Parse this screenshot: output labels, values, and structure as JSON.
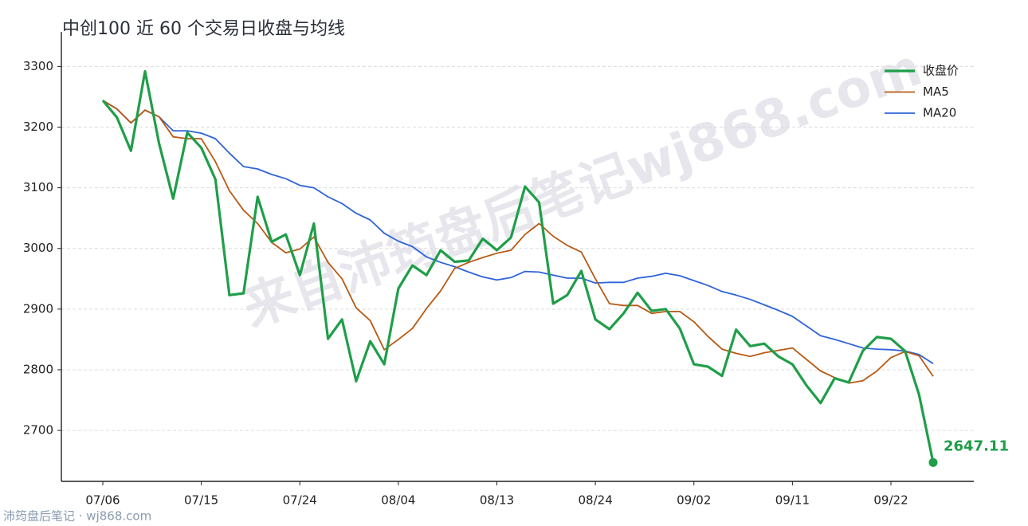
{
  "chart_data": {
    "type": "line",
    "title": "中创100 近 60 个交易日收盘与均线",
    "watermark": "来自沛筠盘后笔记wj868.com",
    "source": "沛筠盘后笔记 · wj868.com",
    "categories": [
      "07/06",
      null,
      null,
      null,
      null,
      null,
      null,
      "07/15",
      null,
      null,
      null,
      null,
      null,
      null,
      "07/24",
      null,
      null,
      null,
      null,
      null,
      null,
      "08/04",
      null,
      null,
      null,
      null,
      null,
      null,
      "08/13",
      null,
      null,
      null,
      null,
      null,
      null,
      "08/24",
      null,
      null,
      null,
      null,
      null,
      null,
      "09/02",
      null,
      null,
      null,
      null,
      null,
      null,
      "09/11",
      null,
      null,
      null,
      null,
      null,
      null,
      "09/22",
      null,
      null,
      null
    ],
    "series": [
      {
        "name": "收盘价",
        "color": "#1f9e49",
        "width": 3.2,
        "values": [
          3244,
          3216,
          3161,
          3292,
          3173,
          3082,
          3191,
          3166,
          3114,
          2923,
          2926,
          3085,
          3011,
          3023,
          2956,
          3041,
          2851,
          2883,
          2781,
          2847,
          2809,
          2934,
          2972,
          2956,
          2997,
          2978,
          2980,
          3016,
          2997,
          3018,
          3102,
          3076,
          2909,
          2923,
          2963,
          2883,
          2867,
          2893,
          2927,
          2897,
          2900,
          2868,
          2809,
          2805,
          2790,
          2866,
          2839,
          2843,
          2822,
          2809,
          2774,
          2745,
          2786,
          2779,
          2831,
          2854,
          2851,
          2831,
          2759,
          2647.11
        ]
      },
      {
        "name": "MA5",
        "color": "#b85a14",
        "width": 1.8,
        "values": [
          3244,
          3230,
          3207,
          3228,
          3217,
          3184,
          3181,
          3181,
          3143,
          3095,
          3063,
          3041,
          3010,
          2993,
          2999,
          3019,
          2977,
          2950,
          2902,
          2881,
          2833,
          2850,
          2868,
          2901,
          2930,
          2967,
          2977,
          2985,
          2992,
          2997,
          3023,
          3041,
          3020,
          3005,
          2994,
          2950,
          2909,
          2906,
          2906,
          2893,
          2896,
          2896,
          2879,
          2855,
          2834,
          2827,
          2822,
          2828,
          2832,
          2836,
          2817,
          2798,
          2787,
          2778,
          2782,
          2798,
          2820,
          2830,
          2823,
          2789
        ]
      },
      {
        "name": "MA20",
        "color": "#2f63d9",
        "width": 1.8,
        "values": [
          3244,
          3230,
          3207,
          3228,
          3217,
          3194,
          3194,
          3190,
          3181,
          3157,
          3135,
          3131,
          3122,
          3115,
          3104,
          3100,
          3085,
          3074,
          3058,
          3047,
          3025,
          3012,
          3003,
          2986,
          2977,
          2970,
          2961,
          2953,
          2948,
          2952,
          2962,
          2961,
          2956,
          2951,
          2951,
          2943,
          2944,
          2944,
          2951,
          2954,
          2959,
          2955,
          2947,
          2939,
          2929,
          2923,
          2916,
          2907,
          2898,
          2888,
          2872,
          2856,
          2850,
          2843,
          2836,
          2834,
          2833,
          2831,
          2825,
          2810
        ]
      }
    ],
    "ylim": [
      2616,
      3357
    ],
    "yticks": [
      2700,
      2800,
      2900,
      3000,
      3100,
      3200,
      3300
    ],
    "grid": true,
    "legend": "upper right"
  }
}
